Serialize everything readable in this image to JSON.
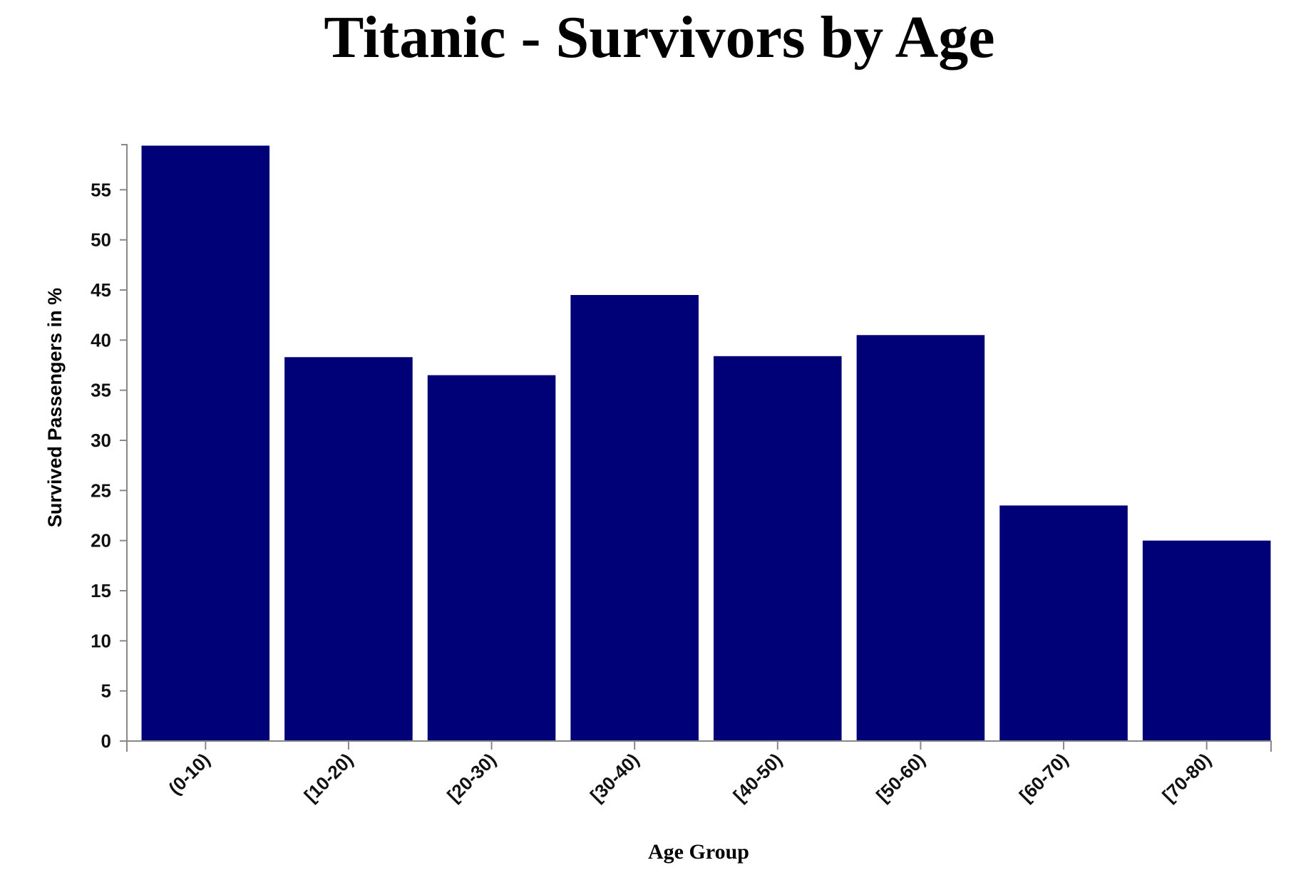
{
  "chart_data": {
    "type": "bar",
    "title": "Titanic - Survivors by Age",
    "xlabel": "Age Group",
    "ylabel": "Survived Passengers in %",
    "categories": [
      "(0-10)",
      "[10-20)",
      "[20-30)",
      "[30-40)",
      "[40-50)",
      "[50-60)",
      "[60-70)",
      "[70-80)"
    ],
    "values": [
      59.4,
      38.3,
      36.5,
      44.5,
      38.4,
      40.5,
      23.5,
      20.0
    ],
    "ylim": [
      0,
      59.5
    ],
    "yticks": [
      "0",
      "5",
      "10",
      "15",
      "20",
      "25",
      "30",
      "35",
      "40",
      "45",
      "50",
      "55"
    ],
    "bar_color": "#000077",
    "grid": false,
    "legend": "none"
  }
}
